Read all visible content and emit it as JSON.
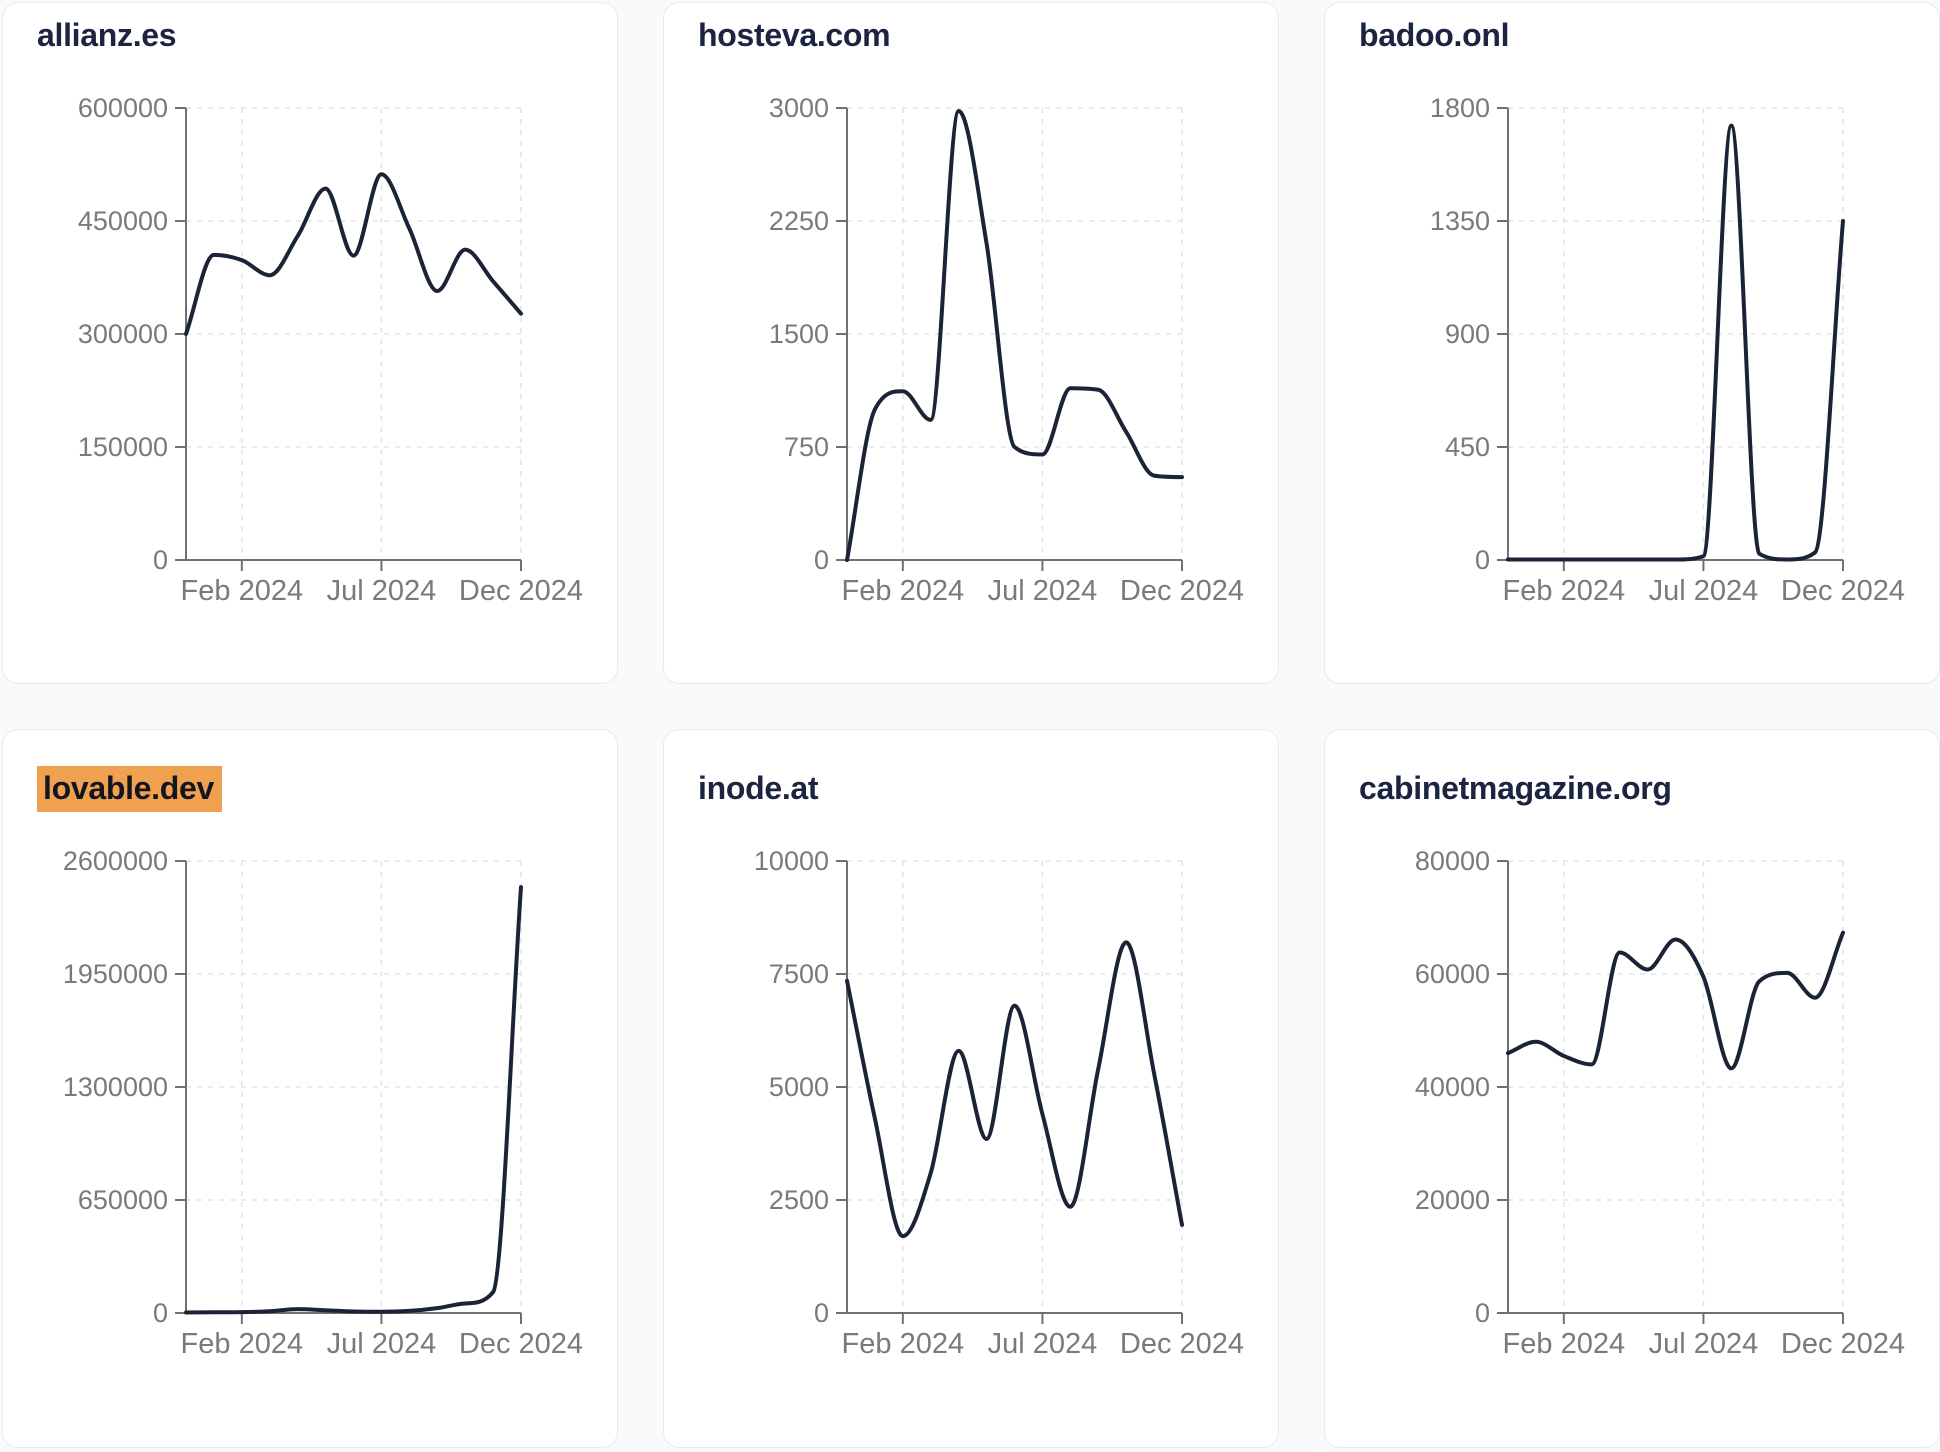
{
  "theme": {
    "page_bg": "#fafafc",
    "card_bg": "#ffffff",
    "card_border": "#e8eaf2",
    "title_color": "#1b2440",
    "highlight_color": "#f0a150",
    "highlight_text_color": "#13161f",
    "line_color": "#1b2336",
    "axis_color": "#717171",
    "tick_label_color": "#7a7a7a",
    "grid_color": "#e3e4ea"
  },
  "x_axis": {
    "tick_labels": [
      "Feb 2024",
      "Jul 2024",
      "Dec 2024"
    ],
    "tick_indices": [
      2,
      7,
      12
    ],
    "points_per_series": 13
  },
  "chart_data": [
    {
      "type": "line",
      "title": "allianz.es",
      "title_highlighted": false,
      "ylim": [
        0,
        600000
      ],
      "y_ticks": [
        0,
        150000,
        300000,
        450000,
        600000
      ],
      "x_tick_labels": [
        "Feb 2024",
        "Jul 2024",
        "Dec 2024"
      ],
      "x_tick_indices": [
        2,
        7,
        12
      ],
      "values": [
        300000,
        405000,
        398000,
        378000,
        430000,
        493000,
        404000,
        512000,
        440000,
        357000,
        412000,
        370000,
        327000
      ]
    },
    {
      "type": "line",
      "title": "hosteva.com",
      "title_highlighted": false,
      "ylim": [
        0,
        3000
      ],
      "y_ticks": [
        0,
        750,
        1500,
        2250,
        3000
      ],
      "x_tick_labels": [
        "Feb 2024",
        "Jul 2024",
        "Dec 2024"
      ],
      "x_tick_indices": [
        2,
        7,
        12
      ],
      "values": [
        0,
        1000,
        1120,
        930,
        2980,
        2100,
        750,
        700,
        1140,
        1130,
        850,
        560,
        550
      ]
    },
    {
      "type": "line",
      "title": "badoo.onl",
      "title_highlighted": false,
      "ylim": [
        0,
        1800
      ],
      "y_ticks": [
        0,
        450,
        900,
        1350,
        1800
      ],
      "x_tick_labels": [
        "Feb 2024",
        "Jul 2024",
        "Dec 2024"
      ],
      "x_tick_indices": [
        2,
        7,
        12
      ],
      "values": [
        2,
        2,
        2,
        2,
        2,
        2,
        2,
        15,
        1730,
        25,
        2,
        30,
        1350
      ]
    },
    {
      "type": "line",
      "title": "lovable.dev",
      "title_highlighted": true,
      "ylim": [
        0,
        2600000
      ],
      "y_ticks": [
        0,
        650000,
        1300000,
        1950000,
        2600000
      ],
      "x_tick_labels": [
        "Feb 2024",
        "Jul 2024",
        "Dec 2024"
      ],
      "x_tick_indices": [
        2,
        7,
        12
      ],
      "values": [
        3000,
        4000,
        5000,
        10000,
        22000,
        16000,
        9000,
        7000,
        12000,
        28000,
        55000,
        120000,
        2450000
      ]
    },
    {
      "type": "line",
      "title": "inode.at",
      "title_highlighted": false,
      "ylim": [
        0,
        10000
      ],
      "y_ticks": [
        0,
        2500,
        5000,
        7500,
        10000
      ],
      "x_tick_labels": [
        "Feb 2024",
        "Jul 2024",
        "Dec 2024"
      ],
      "x_tick_indices": [
        2,
        7,
        12
      ],
      "values": [
        7350,
        4300,
        1700,
        3100,
        5800,
        3850,
        6800,
        4400,
        2350,
        5400,
        8200,
        5300,
        1950
      ]
    },
    {
      "type": "line",
      "title": "cabinetmagazine.org",
      "title_highlighted": false,
      "ylim": [
        0,
        80000
      ],
      "y_ticks": [
        0,
        20000,
        40000,
        60000,
        80000
      ],
      "x_tick_labels": [
        "Feb 2024",
        "Jul 2024",
        "Dec 2024"
      ],
      "x_tick_indices": [
        2,
        7,
        12
      ],
      "values": [
        46000,
        48000,
        45500,
        44000,
        63800,
        60800,
        66100,
        59500,
        43300,
        58700,
        60200,
        55800,
        67300
      ]
    }
  ]
}
